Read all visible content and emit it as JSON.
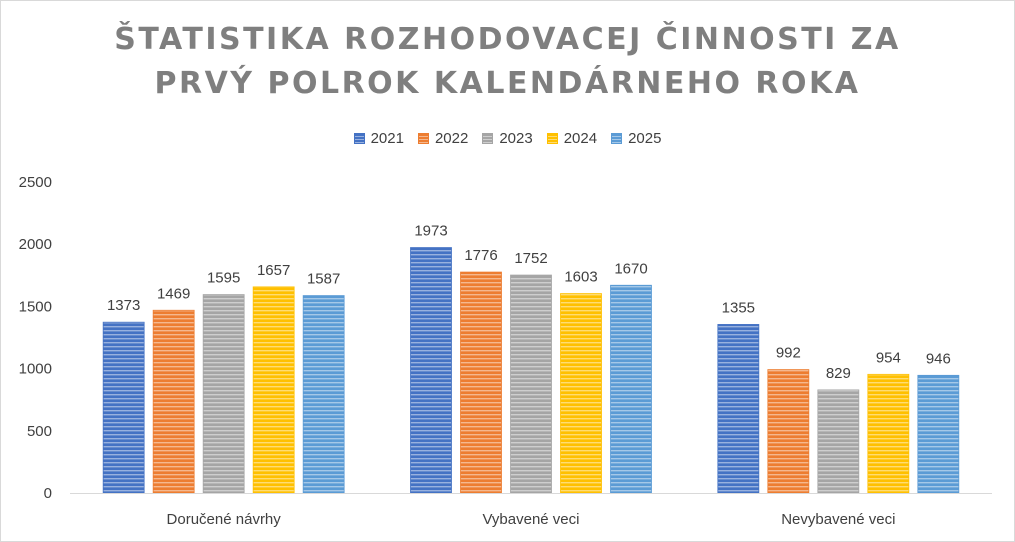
{
  "chart_data": {
    "type": "bar",
    "title_lines": [
      "ŠTATISTIKA ROZHODOVACEJ ČINNOSTI ZA",
      "PRVÝ POLROK KALENDÁRNEHO ROKA"
    ],
    "categories": [
      "Doručené návrhy",
      "Vybavené veci",
      "Nevybavené veci"
    ],
    "series": [
      {
        "name": "2021",
        "color": "#4472c4",
        "values": [
          1373,
          1973,
          1355
        ]
      },
      {
        "name": "2022",
        "color": "#ed7d31",
        "values": [
          1469,
          1776,
          992
        ]
      },
      {
        "name": "2023",
        "color": "#a5a5a5",
        "values": [
          1595,
          1752,
          829
        ]
      },
      {
        "name": "2024",
        "color": "#ffc000",
        "values": [
          1657,
          1603,
          954
        ]
      },
      {
        "name": "2025",
        "color": "#5b9bd5",
        "values": [
          1587,
          1670,
          946
        ]
      }
    ],
    "ylim": [
      0,
      2500
    ],
    "yticks": [
      0,
      500,
      1000,
      1500,
      2000,
      2500
    ],
    "xlabel": "",
    "ylabel": "",
    "grid": false,
    "legend_position": "top",
    "data_labels": true
  }
}
